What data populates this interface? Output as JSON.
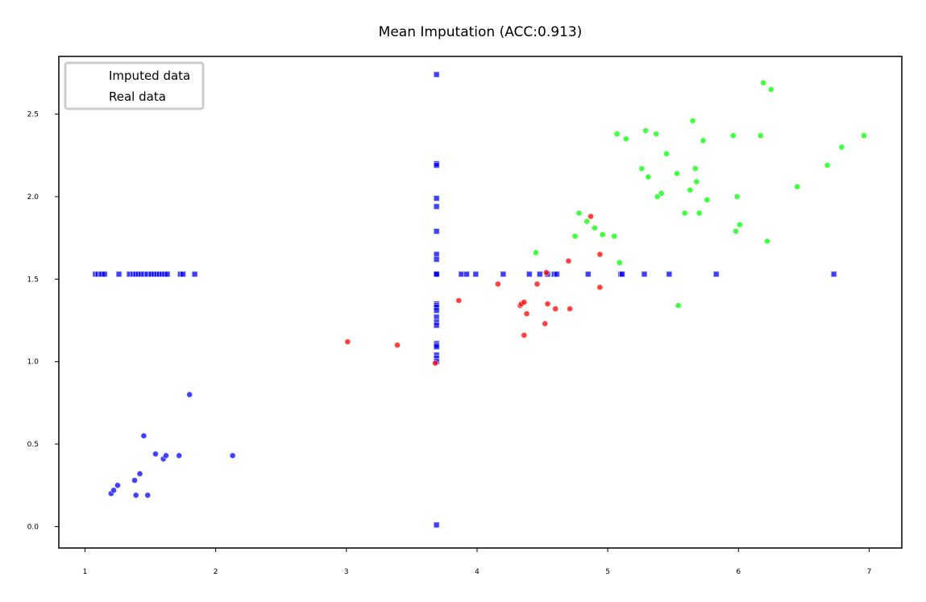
{
  "chart_data": {
    "type": "scatter",
    "title": "Mean Imputation (ACC:0.913)",
    "xlabel": "",
    "ylabel": "",
    "xlim": [
      0.8,
      7.25
    ],
    "ylim": [
      -0.13,
      2.85
    ],
    "xticks": [
      1,
      2,
      3,
      4,
      5,
      6,
      7
    ],
    "yticks": [
      0.0,
      0.5,
      1.0,
      1.5,
      2.0,
      2.5
    ],
    "xtick_labels": [
      "1",
      "2",
      "3",
      "4",
      "5",
      "6",
      "7"
    ],
    "ytick_labels": [
      "0.0",
      "0.5",
      "1.0",
      "1.5",
      "2.0",
      "2.5"
    ],
    "grid": false,
    "legend": {
      "placement": "top-left",
      "entries": [
        "Imputed data",
        "Real data"
      ]
    },
    "colors": {
      "blue": "#0000ff",
      "red": "#ff0000",
      "green": "#00ff00"
    },
    "series": [
      {
        "marker": "square",
        "color": "#0000ff",
        "x": [
          1.08,
          1.1,
          1.12,
          1.13,
          1.15,
          1.26,
          1.34,
          1.37,
          1.39,
          1.41,
          1.43,
          1.45,
          1.47,
          1.48,
          1.5,
          1.51,
          1.53,
          1.55,
          1.57,
          1.59,
          1.61,
          1.63,
          1.73,
          1.75,
          1.84,
          3.69,
          3.69,
          3.69,
          3.69,
          3.69,
          3.69,
          3.69,
          3.69,
          3.69,
          3.69,
          3.69,
          3.69,
          3.69,
          3.69,
          3.69,
          3.69,
          3.69,
          3.69,
          3.69,
          3.69,
          3.69,
          3.69,
          3.69,
          3.69,
          3.69,
          3.69,
          3.88,
          3.92,
          3.99,
          4.2,
          4.4,
          4.48,
          4.54,
          4.59,
          4.61,
          4.85,
          5.1,
          5.11,
          5.28,
          5.47,
          5.83,
          6.73
        ],
        "y": [
          1.53,
          1.53,
          1.53,
          1.53,
          1.53,
          1.53,
          1.53,
          1.53,
          1.53,
          1.53,
          1.53,
          1.53,
          1.53,
          1.53,
          1.53,
          1.53,
          1.53,
          1.53,
          1.53,
          1.53,
          1.53,
          1.53,
          1.53,
          1.53,
          1.53,
          2.74,
          2.2,
          2.19,
          1.99,
          1.94,
          1.79,
          1.65,
          1.62,
          1.53,
          1.53,
          1.35,
          1.34,
          1.33,
          1.31,
          1.27,
          1.24,
          1.22,
          1.11,
          1.1,
          1.09,
          1.04,
          1.02,
          1.0,
          1.53,
          1.53,
          0.01,
          1.53,
          1.53,
          1.53,
          1.53,
          1.53,
          1.53,
          1.53,
          1.53,
          1.53,
          1.53,
          1.53,
          1.53,
          1.53,
          1.53,
          1.53,
          1.53
        ]
      },
      {
        "marker": "circle",
        "color": "#0000ff",
        "x": [
          1.2,
          1.22,
          1.25,
          1.38,
          1.39,
          1.42,
          1.45,
          1.48,
          1.54,
          1.6,
          1.62,
          1.72,
          1.8,
          2.13
        ],
        "y": [
          0.2,
          0.22,
          0.25,
          0.28,
          0.19,
          0.32,
          0.55,
          0.19,
          0.44,
          0.41,
          0.43,
          0.43,
          0.8,
          0.43
        ]
      },
      {
        "marker": "circle",
        "color": "#ff0000",
        "x": [
          3.01,
          3.39,
          3.68,
          3.86,
          4.16,
          4.33,
          4.34,
          4.36,
          4.36,
          4.38,
          4.46,
          4.52,
          4.53,
          4.54,
          4.6,
          4.7,
          4.71,
          4.87,
          4.94,
          4.94
        ],
        "y": [
          1.12,
          1.1,
          0.99,
          1.37,
          1.47,
          1.34,
          1.35,
          1.36,
          1.16,
          1.29,
          1.47,
          1.23,
          1.54,
          1.35,
          1.32,
          1.61,
          1.32,
          1.88,
          1.65,
          1.45
        ]
      },
      {
        "marker": "circle",
        "color": "#00ff00",
        "x": [
          4.45,
          4.75,
          4.78,
          4.84,
          4.9,
          4.96,
          5.05,
          5.07,
          5.09,
          5.14,
          5.26,
          5.29,
          5.31,
          5.37,
          5.38,
          5.41,
          5.45,
          5.53,
          5.54,
          5.59,
          5.63,
          5.65,
          5.67,
          5.68,
          5.7,
          5.73,
          5.76,
          5.96,
          5.98,
          5.99,
          6.01,
          6.17,
          6.19,
          6.22,
          6.25,
          6.45,
          6.68,
          6.79,
          6.96
        ],
        "y": [
          1.66,
          1.76,
          1.9,
          1.85,
          1.81,
          1.77,
          1.76,
          2.38,
          1.6,
          2.35,
          2.17,
          2.4,
          2.12,
          2.38,
          2.0,
          2.02,
          2.26,
          2.14,
          1.34,
          1.9,
          2.04,
          2.46,
          2.17,
          2.09,
          1.9,
          2.34,
          1.98,
          2.37,
          1.79,
          2.0,
          1.83,
          2.37,
          2.69,
          1.73,
          2.65,
          2.06,
          2.19,
          2.3,
          2.37
        ]
      }
    ]
  }
}
